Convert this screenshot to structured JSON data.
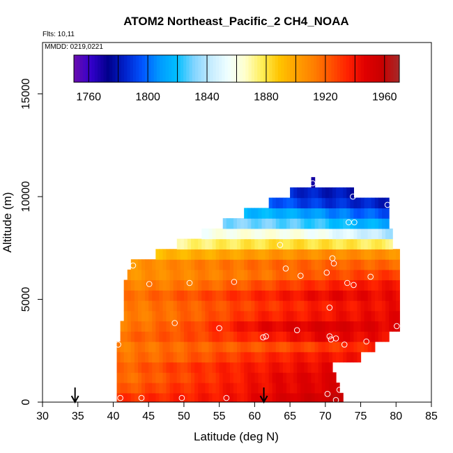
{
  "chart_data": {
    "type": "heatmap",
    "title": "ATOM2 Northeast_Pacific_2 CH4_NOAA",
    "annotations": {
      "flights": "Flts: 10,11",
      "dates": "MMDD: 0219,0221"
    },
    "xlabel": "Latitude (deg N)",
    "ylabel": "Altitude (m)",
    "xlim": [
      30,
      85
    ],
    "ylim": [
      0,
      17500
    ],
    "xticks": [
      "30",
      "35",
      "40",
      "45",
      "50",
      "55",
      "60",
      "65",
      "70",
      "75",
      "80",
      "85"
    ],
    "yticks": [
      "0",
      "5000",
      "10000",
      "15000"
    ],
    "colorbar": {
      "range": [
        1750,
        1970
      ],
      "ticks": [
        "1760",
        "1800",
        "1840",
        "1880",
        "1920",
        "1960"
      ],
      "colors": [
        "#6a0dad",
        "#3300cc",
        "#00008b",
        "#0022cc",
        "#0055ff",
        "#0099ff",
        "#00bfff",
        "#80d4ff",
        "#c6ecff",
        "#f0ffff",
        "#ffffcc",
        "#ffee55",
        "#ffc400",
        "#ffa000",
        "#ff7f00",
        "#ff5200",
        "#ff2000",
        "#e00000",
        "#c80000",
        "#a52a2a"
      ]
    },
    "altitude_bands": [
      {
        "alt": 200,
        "lat": [
          40.5,
          72.5
        ],
        "values": [
          1930,
          1935,
          1940,
          1950,
          1958
        ]
      },
      {
        "alt": 700,
        "lat": [
          40.5,
          72
        ],
        "values": [
          1920,
          1930,
          1938,
          1945,
          1950
        ]
      },
      {
        "alt": 1200,
        "lat": [
          40.5,
          71.5
        ],
        "values": [
          1915,
          1925,
          1935,
          1945,
          1948
        ]
      },
      {
        "alt": 1700,
        "lat": [
          40.5,
          71
        ],
        "values": [
          1918,
          1928,
          1935,
          1940,
          1945
        ]
      },
      {
        "alt": 2200,
        "lat": [
          40.5,
          75
        ],
        "values": [
          1915,
          1920,
          1930,
          1938,
          1940
        ]
      },
      {
        "alt": 2700,
        "lat": [
          40.5,
          77
        ],
        "values": [
          1912,
          1918,
          1922,
          1928,
          1935
        ]
      },
      {
        "alt": 3200,
        "lat": [
          41,
          79
        ],
        "values": [
          1918,
          1925,
          1935,
          1945,
          1942
        ]
      },
      {
        "alt": 3700,
        "lat": [
          41,
          80.5
        ],
        "values": [
          1912,
          1925,
          1945,
          1950,
          1945
        ]
      },
      {
        "alt": 4200,
        "lat": [
          41.5,
          80.5
        ],
        "values": [
          1910,
          1920,
          1935,
          1940,
          1945
        ]
      },
      {
        "alt": 4700,
        "lat": [
          41.5,
          80.5
        ],
        "values": [
          1912,
          1920,
          1930,
          1938,
          1942
        ]
      },
      {
        "alt": 5200,
        "lat": [
          41.5,
          80.5
        ],
        "values": [
          1915,
          1925,
          1935,
          1945,
          1942
        ]
      },
      {
        "alt": 5700,
        "lat": [
          41.5,
          80.5
        ],
        "values": [
          1910,
          1915,
          1925,
          1935,
          1940
        ]
      },
      {
        "alt": 6200,
        "lat": [
          42,
          80.5
        ],
        "values": [
          1905,
          1910,
          1915,
          1925,
          1930
        ]
      },
      {
        "alt": 6700,
        "lat": [
          42.5,
          80.5
        ],
        "values": [
          1905,
          1912,
          1918,
          1920,
          1918
        ]
      },
      {
        "alt": 7200,
        "lat": [
          46,
          80.5
        ],
        "values": [
          1892,
          1898,
          1905,
          1908,
          1905
        ]
      },
      {
        "alt": 7700,
        "lat": [
          49,
          79.5
        ],
        "values": [
          1872,
          1878,
          1882,
          1880,
          1875
        ]
      },
      {
        "alt": 8200,
        "lat": [
          52.5,
          79.5
        ],
        "values": [
          1858,
          1862,
          1860,
          1850,
          1838
        ]
      },
      {
        "alt": 8700,
        "lat": [
          55.5,
          79
        ],
        "values": [
          1832,
          1830,
          1825,
          1818,
          1812
        ]
      },
      {
        "alt": 9200,
        "lat": [
          58.5,
          79
        ],
        "values": [
          1818,
          1815,
          1808,
          1800,
          1795
        ]
      },
      {
        "alt": 9700,
        "lat": [
          62,
          79
        ],
        "values": [
          1798,
          1792,
          1788,
          1785,
          1782
        ]
      },
      {
        "alt": 10200,
        "lat": [
          65,
          74
        ],
        "values": [
          1786,
          1782,
          1780
        ]
      },
      {
        "alt": 10700,
        "lat": [
          68,
          68.5
        ],
        "values": [
          1765
        ]
      }
    ],
    "sample_points": [
      {
        "lat": 41,
        "alt": 200
      },
      {
        "lat": 44,
        "alt": 200
      },
      {
        "lat": 49.7,
        "alt": 200
      },
      {
        "lat": 56,
        "alt": 200
      },
      {
        "lat": 70.3,
        "alt": 400
      },
      {
        "lat": 71.5,
        "alt": 100
      },
      {
        "lat": 72,
        "alt": 600
      },
      {
        "lat": 40.7,
        "alt": 2800
      },
      {
        "lat": 48.7,
        "alt": 3850
      },
      {
        "lat": 55,
        "alt": 3600
      },
      {
        "lat": 61.2,
        "alt": 3150
      },
      {
        "lat": 61.6,
        "alt": 3200
      },
      {
        "lat": 66,
        "alt": 3500
      },
      {
        "lat": 70.6,
        "alt": 3200
      },
      {
        "lat": 70.8,
        "alt": 3050
      },
      {
        "lat": 71.5,
        "alt": 3100
      },
      {
        "lat": 72.7,
        "alt": 2800
      },
      {
        "lat": 75.8,
        "alt": 2950
      },
      {
        "lat": 80.1,
        "alt": 3700
      },
      {
        "lat": 70.6,
        "alt": 4600
      },
      {
        "lat": 45.1,
        "alt": 5750
      },
      {
        "lat": 50.8,
        "alt": 5800
      },
      {
        "lat": 57.1,
        "alt": 5850
      },
      {
        "lat": 73.1,
        "alt": 5800
      },
      {
        "lat": 74,
        "alt": 5700
      },
      {
        "lat": 66.5,
        "alt": 6150
      },
      {
        "lat": 70.2,
        "alt": 6300
      },
      {
        "lat": 76.4,
        "alt": 6100
      },
      {
        "lat": 64.4,
        "alt": 6500
      },
      {
        "lat": 71,
        "alt": 7000
      },
      {
        "lat": 71.2,
        "alt": 6750
      },
      {
        "lat": 42.8,
        "alt": 6650
      },
      {
        "lat": 63.6,
        "alt": 7650
      },
      {
        "lat": 73.3,
        "alt": 8750
      },
      {
        "lat": 74.1,
        "alt": 8750
      },
      {
        "lat": 78.8,
        "alt": 9600
      },
      {
        "lat": 73.9,
        "alt": 10000
      },
      {
        "lat": 68.2,
        "alt": 10650
      }
    ],
    "arrows_lat": [
      34.6,
      61.3
    ]
  }
}
